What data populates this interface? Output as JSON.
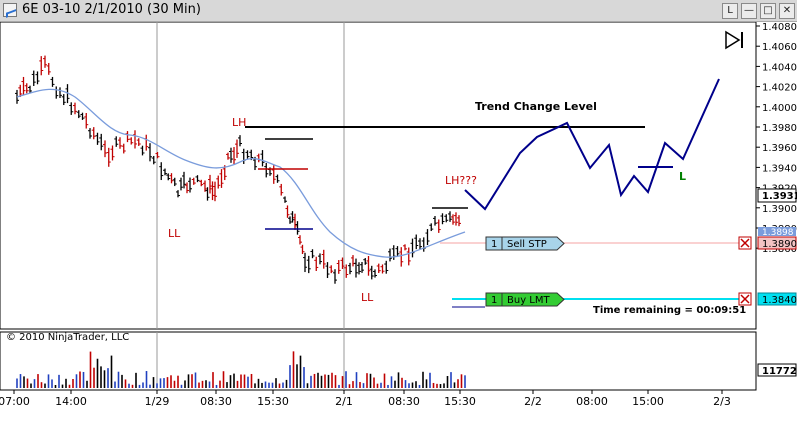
{
  "window": {
    "title": "6E 03-10  2/1/2010 (30 Min)",
    "buttons": [
      "L"
    ]
  },
  "price_axis": {
    "ticks": [
      "1.4080",
      "1.4060",
      "1.4040",
      "1.4020",
      "1.4000",
      "1.3980",
      "1.3960",
      "1.3940",
      "1.3920",
      "1.3900",
      "1.3880",
      "1.3860"
    ],
    "last_price": "1.3931",
    "marker_price": "1.3898",
    "sell_stop_price": "1.3890",
    "buy_limit_price": "1.3840"
  },
  "volume_axis": {
    "last_volume": "11772"
  },
  "time_axis": {
    "labels": [
      "07:00",
      "14:00",
      "1/29",
      "08:30",
      "15:30",
      "2/1",
      "08:30",
      "15:30",
      "2/2",
      "08:00",
      "15:00",
      "2/3"
    ]
  },
  "annotations": {
    "trend_change": "Trend Change Level",
    "lh": "LH",
    "lh_question": "LH???",
    "ll": "LL",
    "l_marker": "L"
  },
  "orders": {
    "sell_stp": {
      "qty": "1",
      "label": "Sell STP"
    },
    "buy_lmt": {
      "qty": "1",
      "label": "Buy LMT"
    }
  },
  "time_remaining": "Time remaining = 00:09:51",
  "copyright": "© 2010 NinjaTrader, LLC",
  "colors": {
    "up_bar": "#000000",
    "down_bar": "#c00000",
    "moving_average": "#7a9cdc",
    "projection": "#00008b",
    "sell_order_line": "#f4a3a3",
    "buy_order_line": "#00e0f0",
    "sell_tag": "#a8d4ea",
    "buy_tag": "#33cc33"
  }
}
